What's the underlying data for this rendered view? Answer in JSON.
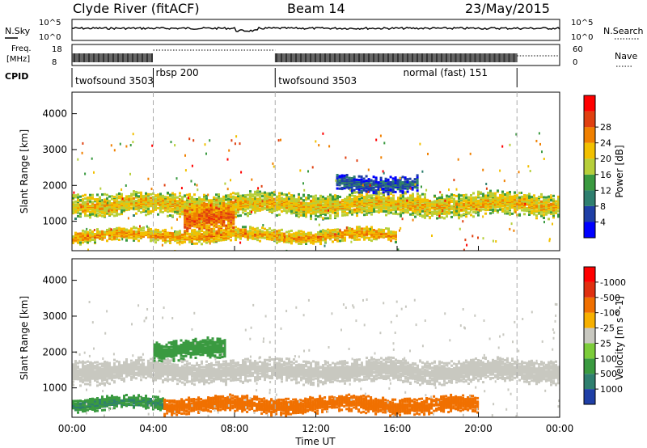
{
  "header": {
    "station": "Clyde River (fitACF)",
    "beam": "Beam 14",
    "date": "23/May/2015"
  },
  "top_panel": {
    "nsky_label": "N.Sky",
    "nsearch_label": "N.Search",
    "freq_label_line1": "Freq.",
    "freq_label_line2": "[MHz]",
    "nave_label": "Nave",
    "cpid_label": "CPID",
    "left_ticks_sky": [
      "10^5",
      "10^0"
    ],
    "right_ticks_sky": [
      "10^5",
      "10^0"
    ],
    "left_ticks_freq": [
      "18",
      "8"
    ],
    "right_ticks_freq": [
      "60",
      "0"
    ]
  },
  "cpid_segments": [
    {
      "start_hour": 0.0,
      "end_hour": 4.0,
      "label": "twofsound 3503"
    },
    {
      "start_hour": 4.0,
      "end_hour": 10.0,
      "label": "rbsp 200"
    },
    {
      "start_hour": 10.0,
      "end_hour": 21.9,
      "label": "twofsound 3503"
    },
    {
      "start_hour": 16.3,
      "end_hour": 21.9,
      "label": "normal (fast) 151"
    }
  ],
  "chart_data": [
    {
      "type": "heatmap",
      "title": "",
      "xlabel": "",
      "ylabel": "Slant Range [km]",
      "xlim_hours": [
        0,
        24
      ],
      "ylim_km": [
        180,
        4600
      ],
      "x_ticks": [
        "00:00",
        "04:00",
        "08:00",
        "12:00",
        "16:00",
        "20:00",
        "00:00"
      ],
      "y_ticks": [
        "1000",
        "2000",
        "3000",
        "4000"
      ],
      "colorbar": {
        "label": "Power [dB]",
        "tick_labels": [
          "4",
          "8",
          "12",
          "16",
          "20",
          "24",
          "28"
        ],
        "colors": [
          "#0000ff",
          "#1f3fa6",
          "#2f7f6f",
          "#3a9a40",
          "#b7cf3a",
          "#f2c000",
          "#f08000",
          "#e04010",
          "#ff0000"
        ]
      },
      "bands": [
        {
          "start_hour": 0.0,
          "end_hour": 24.0,
          "center_km": 1500,
          "half_width_km": 350,
          "level_db": 22
        },
        {
          "start_hour": 0.0,
          "end_hour": 16.0,
          "center_km": 640,
          "half_width_km": 200,
          "level_db": 24
        },
        {
          "start_hour": 5.5,
          "end_hour": 8.0,
          "center_km": 1100,
          "half_width_km": 500,
          "level_db": 27
        },
        {
          "start_hour": 13.0,
          "end_hour": 17.0,
          "center_km": 2100,
          "half_width_km": 250,
          "level_db": 10
        }
      ]
    },
    {
      "type": "heatmap",
      "title": "",
      "xlabel": "Time UT",
      "ylabel": "Slant Range [km]",
      "xlim_hours": [
        0,
        24
      ],
      "ylim_km": [
        180,
        4600
      ],
      "x_ticks": [
        "00:00",
        "04:00",
        "08:00",
        "12:00",
        "16:00",
        "20:00",
        "00:00"
      ],
      "y_ticks": [
        "1000",
        "2000",
        "3000",
        "4000"
      ],
      "colorbar": {
        "label": "Velocity [m s^-1]",
        "tick_labels": [
          "1000",
          "500",
          "100",
          "25",
          "-25",
          "-100",
          "-500",
          "-1000"
        ],
        "colors": [
          "#1f3fa6",
          "#2f7f6f",
          "#3a9a40",
          "#7ccc3a",
          "#c8c8c0",
          "#f7b000",
          "#f07000",
          "#e03010",
          "#ff0000"
        ]
      },
      "bands": [
        {
          "start_hour": 0.0,
          "end_hour": 24.0,
          "center_km": 1500,
          "half_width_km": 350,
          "level_ms": 0
        },
        {
          "start_hour": 0.0,
          "end_hour": 4.5,
          "center_km": 600,
          "half_width_km": 200,
          "level_ms": 300
        },
        {
          "start_hour": 4.5,
          "end_hour": 20.0,
          "center_km": 560,
          "half_width_km": 250,
          "level_ms": -150
        },
        {
          "start_hour": 4.0,
          "end_hour": 7.5,
          "center_km": 2100,
          "half_width_km": 300,
          "level_ms": 120
        }
      ]
    }
  ]
}
